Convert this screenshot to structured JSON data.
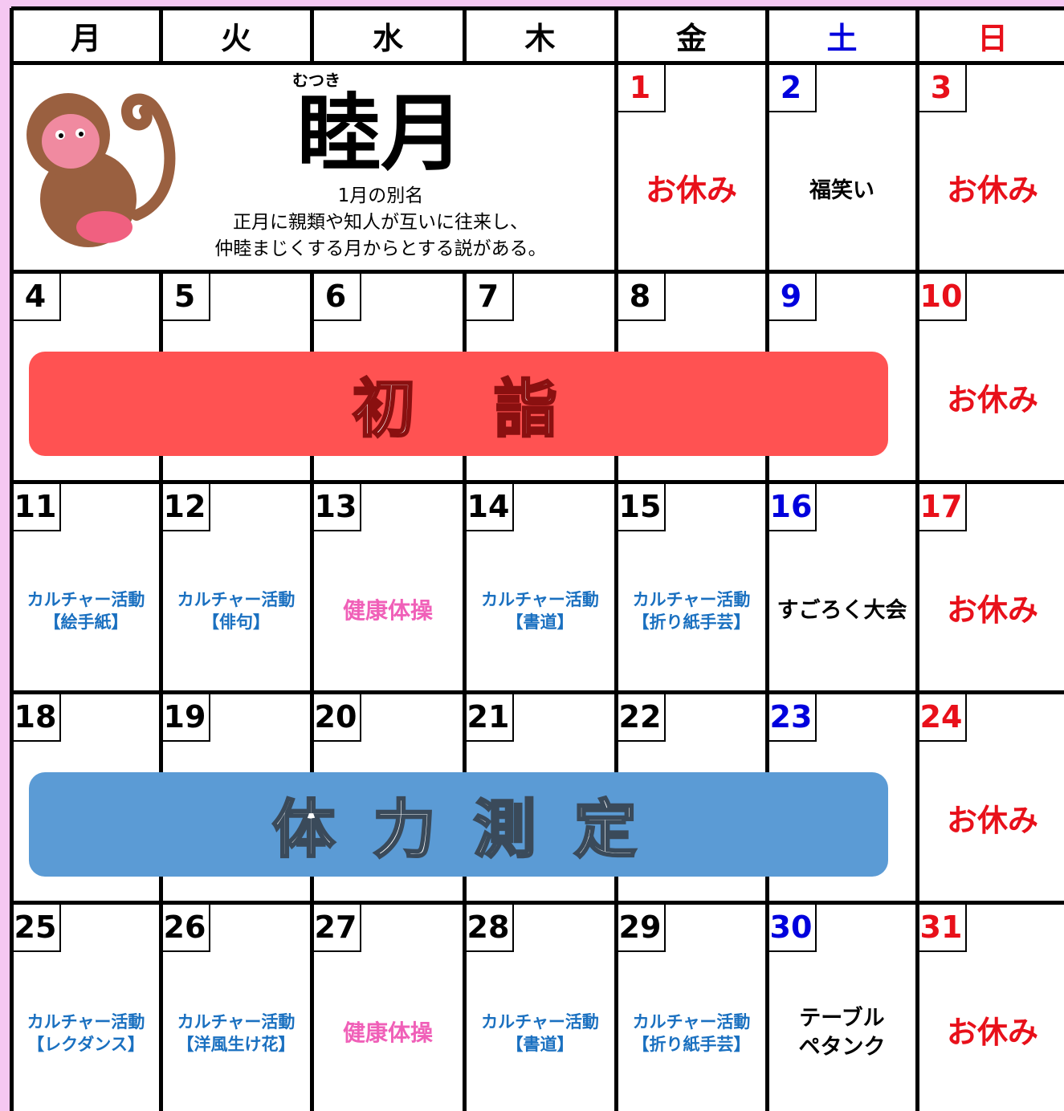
{
  "header": {
    "weekdays": [
      "月",
      "火",
      "水",
      "木",
      "金",
      "土",
      "日"
    ],
    "colors": [
      "#000000",
      "#000000",
      "#000000",
      "#000000",
      "#000000",
      "#0000dd",
      "#e8101a"
    ]
  },
  "month": {
    "ruby": "むつき",
    "name": "睦月",
    "caption": [
      "1月の別名",
      "正月に親類や知人が互いに往来し、",
      "仲睦まじくする月からとする説がある。"
    ]
  },
  "weeks": [
    {
      "days": [
        null,
        null,
        null,
        null,
        {
          "day": 1,
          "color": "#e8101a",
          "event": {
            "lines": [
              "お休み"
            ],
            "color": "#e8101a"
          }
        },
        {
          "day": 2,
          "color": "#0000dd",
          "event": {
            "lines": [
              "福笑い"
            ],
            "color": "#000000"
          }
        },
        {
          "day": 3,
          "color": "#e8101a",
          "event": {
            "lines": [
              "お休み"
            ],
            "color": "#e8101a"
          }
        }
      ]
    },
    {
      "banner": {
        "text": "初　詣",
        "color": "#ff5252",
        "outline": "#8a1010"
      },
      "days": [
        {
          "day": 4,
          "color": "#000000"
        },
        {
          "day": 5,
          "color": "#000000"
        },
        {
          "day": 6,
          "color": "#000000"
        },
        {
          "day": 7,
          "color": "#000000"
        },
        {
          "day": 8,
          "color": "#000000"
        },
        {
          "day": 9,
          "color": "#0000dd"
        },
        {
          "day": 10,
          "color": "#e8101a",
          "event": {
            "lines": [
              "お休み"
            ],
            "color": "#e8101a"
          }
        }
      ]
    },
    {
      "days": [
        {
          "day": 11,
          "color": "#000000",
          "event": {
            "lines": [
              "カルチャー活動",
              "【絵手紙】"
            ],
            "color": "#1a70c0"
          }
        },
        {
          "day": 12,
          "color": "#000000",
          "event": {
            "lines": [
              "カルチャー活動",
              "【俳句】"
            ],
            "color": "#1a70c0"
          }
        },
        {
          "day": 13,
          "color": "#000000",
          "event": {
            "lines": [
              "健康体操"
            ],
            "color": "#f060b8"
          }
        },
        {
          "day": 14,
          "color": "#000000",
          "event": {
            "lines": [
              "カルチャー活動",
              "【書道】"
            ],
            "color": "#1a70c0"
          }
        },
        {
          "day": 15,
          "color": "#000000",
          "event": {
            "lines": [
              "カルチャー活動",
              "【折り紙手芸】"
            ],
            "color": "#1a70c0"
          }
        },
        {
          "day": 16,
          "color": "#0000dd",
          "event": {
            "lines": [
              "すごろく大会"
            ],
            "color": "#000000"
          }
        },
        {
          "day": 17,
          "color": "#e8101a",
          "event": {
            "lines": [
              "お休み"
            ],
            "color": "#e8101a"
          }
        }
      ]
    },
    {
      "banner": {
        "text": "体 力 測 定",
        "color": "#5b9bd5",
        "outline": "#3a4a5a"
      },
      "days": [
        {
          "day": 18,
          "color": "#000000"
        },
        {
          "day": 19,
          "color": "#000000"
        },
        {
          "day": 20,
          "color": "#000000"
        },
        {
          "day": 21,
          "color": "#000000"
        },
        {
          "day": 22,
          "color": "#000000"
        },
        {
          "day": 23,
          "color": "#0000dd"
        },
        {
          "day": 24,
          "color": "#e8101a",
          "event": {
            "lines": [
              "お休み"
            ],
            "color": "#e8101a"
          }
        }
      ]
    },
    {
      "days": [
        {
          "day": 25,
          "color": "#000000",
          "event": {
            "lines": [
              "カルチャー活動",
              "【レクダンス】"
            ],
            "color": "#1a70c0"
          }
        },
        {
          "day": 26,
          "color": "#000000",
          "event": {
            "lines": [
              "カルチャー活動",
              "【洋風生け花】"
            ],
            "color": "#1a70c0"
          }
        },
        {
          "day": 27,
          "color": "#000000",
          "event": {
            "lines": [
              "健康体操"
            ],
            "color": "#f060b8"
          }
        },
        {
          "day": 28,
          "color": "#000000",
          "event": {
            "lines": [
              "カルチャー活動",
              "【書道】"
            ],
            "color": "#1a70c0"
          }
        },
        {
          "day": 29,
          "color": "#000000",
          "event": {
            "lines": [
              "カルチャー活動",
              "【折り紙手芸】"
            ],
            "color": "#1a70c0"
          }
        },
        {
          "day": 30,
          "color": "#0000dd",
          "event": {
            "lines": [
              "テーブル",
              "ペタンク"
            ],
            "color": "#000000"
          }
        },
        {
          "day": 31,
          "color": "#e8101a",
          "event": {
            "lines": [
              "お休み"
            ],
            "color": "#e8101a"
          }
        }
      ]
    }
  ]
}
